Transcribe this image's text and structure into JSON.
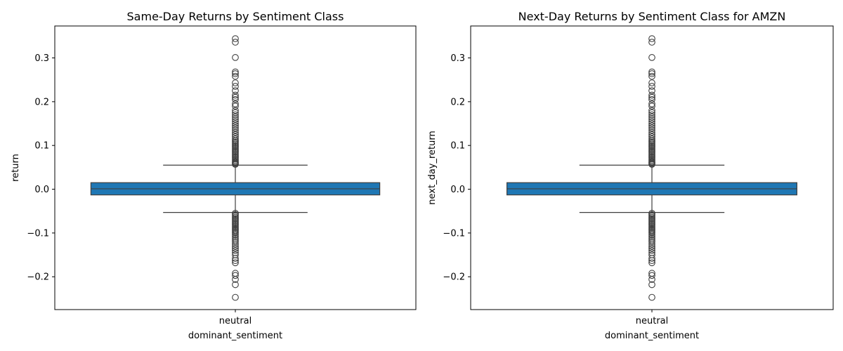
{
  "chart_data": [
    {
      "type": "box",
      "title": "Same-Day Returns by Sentiment Class",
      "xlabel": "dominant_sentiment",
      "ylabel": "return",
      "categories": [
        "neutral"
      ],
      "ylim": [
        -0.275,
        0.373
      ],
      "yticks": [
        -0.2,
        -0.1,
        0.0,
        0.1,
        0.2,
        0.3
      ],
      "ytick_labels": [
        "−0.2",
        "−0.1",
        "0.0",
        "0.1",
        "0.2",
        "0.3"
      ],
      "box": {
        "q1": -0.013,
        "median": 0.001,
        "q3": 0.015,
        "whisker_low": -0.053,
        "whisker_high": 0.055
      },
      "box_color": "#1f77b4",
      "outliers_high": [
        0.057,
        0.059,
        0.061,
        0.063,
        0.066,
        0.069,
        0.072,
        0.075,
        0.078,
        0.081,
        0.084,
        0.087,
        0.09,
        0.093,
        0.096,
        0.099,
        0.102,
        0.105,
        0.108,
        0.111,
        0.115,
        0.12,
        0.125,
        0.13,
        0.135,
        0.14,
        0.145,
        0.15,
        0.155,
        0.16,
        0.165,
        0.17,
        0.175,
        0.18,
        0.19,
        0.195,
        0.205,
        0.21,
        0.215,
        0.225,
        0.235,
        0.243,
        0.258,
        0.264,
        0.268,
        0.301,
        0.336,
        0.344
      ],
      "outliers_low": [
        -0.055,
        -0.058,
        -0.061,
        -0.064,
        -0.067,
        -0.07,
        -0.073,
        -0.076,
        -0.079,
        -0.082,
        -0.085,
        -0.088,
        -0.091,
        -0.094,
        -0.097,
        -0.1,
        -0.104,
        -0.108,
        -0.112,
        -0.116,
        -0.12,
        -0.125,
        -0.13,
        -0.135,
        -0.14,
        -0.145,
        -0.15,
        -0.158,
        -0.163,
        -0.168,
        -0.192,
        -0.197,
        -0.206,
        -0.218,
        -0.247
      ]
    },
    {
      "type": "box",
      "title": "Next-Day Returns by Sentiment Class for AMZN",
      "xlabel": "dominant_sentiment",
      "ylabel": "next_day_return",
      "categories": [
        "neutral"
      ],
      "ylim": [
        -0.275,
        0.373
      ],
      "yticks": [
        -0.2,
        -0.1,
        0.0,
        0.1,
        0.2,
        0.3
      ],
      "ytick_labels": [
        "−0.2",
        "−0.1",
        "0.0",
        "0.1",
        "0.2",
        "0.3"
      ],
      "box": {
        "q1": -0.013,
        "median": 0.001,
        "q3": 0.015,
        "whisker_low": -0.053,
        "whisker_high": 0.055
      },
      "box_color": "#1f77b4",
      "outliers_high": [
        0.057,
        0.059,
        0.061,
        0.063,
        0.066,
        0.069,
        0.072,
        0.075,
        0.078,
        0.081,
        0.084,
        0.087,
        0.09,
        0.093,
        0.096,
        0.099,
        0.102,
        0.105,
        0.108,
        0.111,
        0.115,
        0.12,
        0.125,
        0.13,
        0.135,
        0.14,
        0.145,
        0.15,
        0.155,
        0.16,
        0.165,
        0.17,
        0.175,
        0.18,
        0.19,
        0.195,
        0.205,
        0.21,
        0.215,
        0.225,
        0.235,
        0.243,
        0.258,
        0.264,
        0.268,
        0.301,
        0.336,
        0.344
      ],
      "outliers_low": [
        -0.055,
        -0.058,
        -0.061,
        -0.064,
        -0.067,
        -0.07,
        -0.073,
        -0.076,
        -0.079,
        -0.082,
        -0.085,
        -0.088,
        -0.091,
        -0.094,
        -0.097,
        -0.1,
        -0.104,
        -0.108,
        -0.112,
        -0.116,
        -0.12,
        -0.125,
        -0.13,
        -0.135,
        -0.14,
        -0.145,
        -0.15,
        -0.158,
        -0.163,
        -0.168,
        -0.192,
        -0.197,
        -0.206,
        -0.218,
        -0.247
      ]
    }
  ]
}
